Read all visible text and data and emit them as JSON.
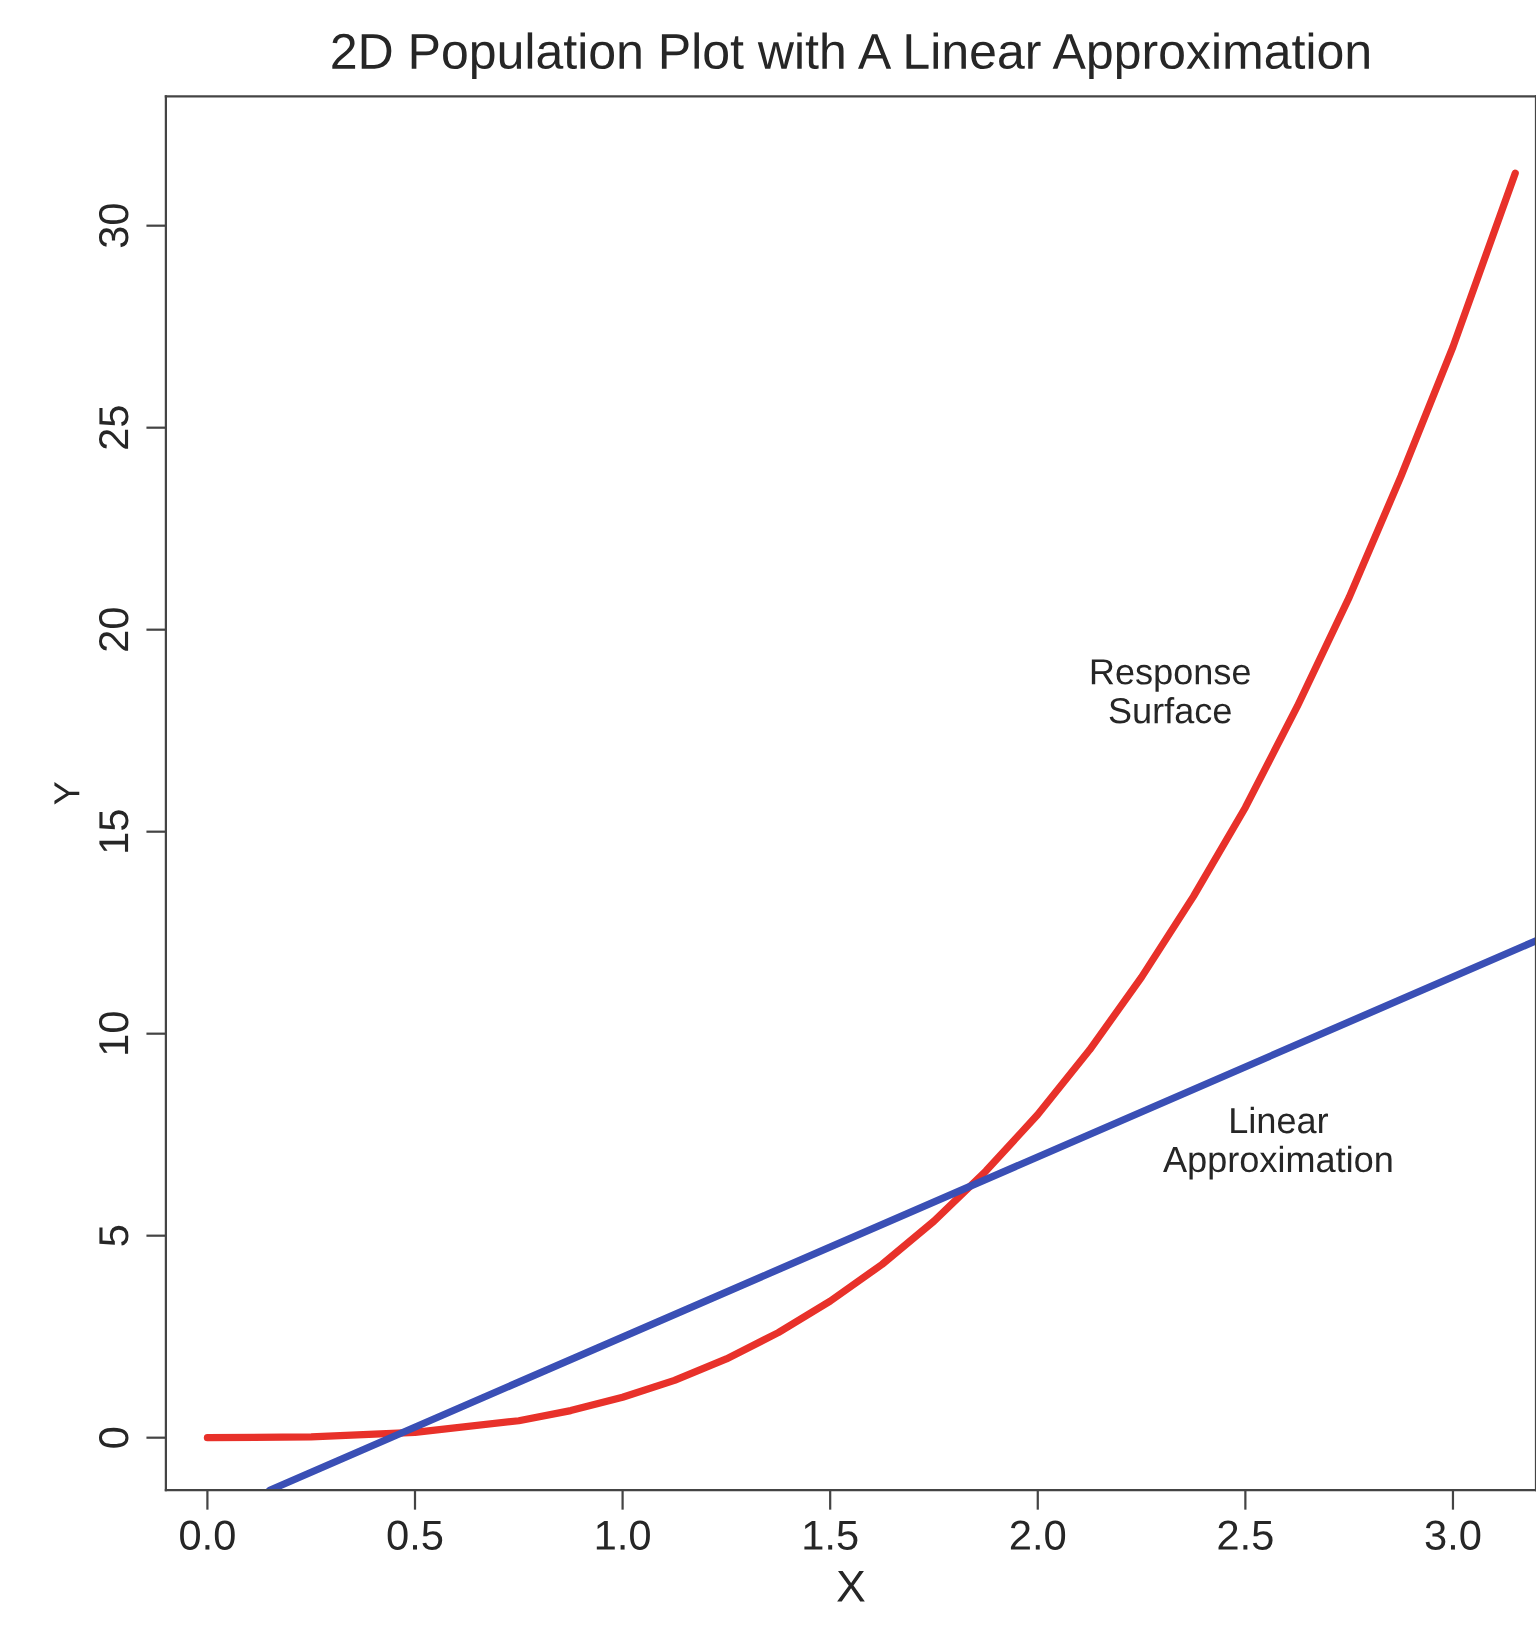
{
  "chart_data": {
    "type": "line",
    "title": "2D Population Plot with A Linear Approximation",
    "xlabel": "X",
    "ylabel": "Y",
    "xlim": [
      -0.1,
      3.2
    ],
    "ylim": [
      -1.3,
      33.2
    ],
    "xticks": [
      {
        "value": 0,
        "label": "0.0"
      },
      {
        "value": 0.5,
        "label": "0.5"
      },
      {
        "value": 1,
        "label": "1.0"
      },
      {
        "value": 1.5,
        "label": "1.5"
      },
      {
        "value": 2,
        "label": "2.0"
      },
      {
        "value": 2.5,
        "label": "2.5"
      },
      {
        "value": 3,
        "label": "3.0"
      }
    ],
    "yticks": [
      0,
      5,
      10,
      15,
      20,
      25,
      30
    ],
    "grid": false,
    "legend": false,
    "marker": "none",
    "line_style": "solid",
    "series": [
      {
        "name": "Response\nSurface",
        "color": "#e8312a",
        "x": [
          0,
          0.25,
          0.5,
          0.75,
          0.875,
          1,
          1.125,
          1.25,
          1.375,
          1.5,
          1.625,
          1.75,
          1.875,
          2,
          2.125,
          2.25,
          2.375,
          2.5,
          2.625,
          2.75,
          2.875,
          3,
          3.15
        ],
        "values": [
          0,
          0.02,
          0.13,
          0.42,
          0.67,
          1,
          1.42,
          1.95,
          2.6,
          3.38,
          4.29,
          5.36,
          6.6,
          8,
          9.6,
          11.4,
          13.4,
          15.6,
          18.1,
          20.8,
          23.8,
          27,
          31.3
        ]
      },
      {
        "name": "Linear\nApproximation",
        "color": "#3a4fb5",
        "x": [
          0.15,
          3.2
        ],
        "values": [
          -1.3,
          12.3
        ]
      }
    ]
  }
}
